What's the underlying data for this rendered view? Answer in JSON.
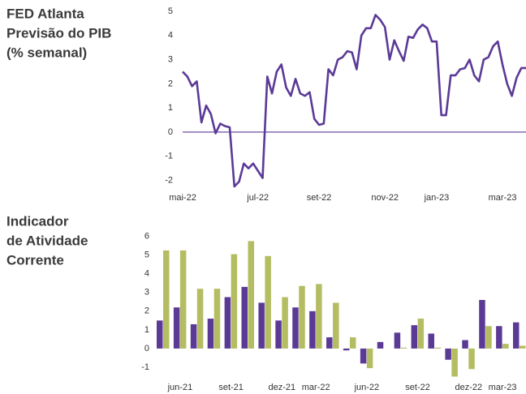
{
  "chart_data": [
    {
      "type": "line",
      "title": [
        "FED Atlanta",
        "Previsão do PIB",
        "(% semanal)"
      ],
      "categories": [
        "mai-22",
        null,
        null,
        null,
        null,
        null,
        null,
        null,
        null,
        null,
        null,
        null,
        null,
        null,
        null,
        null,
        "jul-22",
        null,
        null,
        null,
        null,
        null,
        null,
        null,
        null,
        null,
        null,
        null,
        null,
        "set-22",
        null,
        null,
        null,
        null,
        null,
        null,
        null,
        null,
        null,
        null,
        null,
        null,
        null,
        "nov-22",
        null,
        null,
        null,
        null,
        null,
        null,
        null,
        null,
        null,
        null,
        "jan-23",
        null,
        null,
        null,
        null,
        null,
        null,
        null,
        null,
        null,
        null,
        null,
        null,
        null,
        "mar-23",
        null,
        null,
        null,
        null,
        null
      ],
      "series": [
        {
          "color": "#5b3a96",
          "values": [
            2.5,
            2.3,
            1.9,
            2.1,
            0.4,
            1.1,
            0.75,
            -0.05,
            0.35,
            0.25,
            0.2,
            -2.25,
            -2.05,
            -1.3,
            -1.5,
            -1.3,
            -1.6,
            -1.9,
            2.3,
            1.6,
            2.5,
            2.8,
            1.85,
            1.5,
            2.2,
            1.6,
            1.5,
            1.65,
            0.55,
            0.3,
            0.35,
            2.6,
            2.35,
            3.0,
            3.1,
            3.35,
            3.3,
            2.6,
            4.0,
            4.3,
            4.3,
            4.85,
            4.65,
            4.35,
            3.0,
            3.8,
            3.35,
            2.95,
            3.95,
            3.9,
            4.25,
            4.45,
            4.3,
            3.75,
            3.75,
            0.7,
            0.7,
            2.35,
            2.35,
            2.6,
            2.65,
            3.0,
            2.35,
            2.1,
            3.0,
            3.1,
            3.55,
            3.75,
            2.8,
            2.0,
            1.5,
            2.25,
            2.65,
            2.65
          ]
        }
      ],
      "ylim": [
        -2.3,
        5.3
      ],
      "yticks": [
        -2,
        -1,
        0,
        1,
        2,
        3,
        4,
        5
      ]
    },
    {
      "type": "bar",
      "title": [
        "Indicador",
        "de Atividade",
        "Corrente"
      ],
      "categories": [
        null,
        "jun-21",
        null,
        null,
        "set-21",
        null,
        null,
        "dez-21",
        null,
        "mar-22",
        null,
        null,
        "jun-22",
        null,
        null,
        "set-22",
        null,
        null,
        "dez-22",
        null,
        "mar-23",
        null
      ],
      "series": [
        {
          "color": "#5b3a96",
          "values": [
            1.5,
            2.2,
            1.3,
            1.6,
            2.75,
            3.3,
            2.45,
            1.5,
            2.2,
            2.0,
            0.6,
            -0.1,
            -0.8,
            0.35,
            0.85,
            1.25,
            0.8,
            -0.6,
            0.45,
            2.6,
            1.2,
            1.4
          ]
        },
        {
          "color": "#b5bd62",
          "values": [
            5.25,
            5.25,
            3.2,
            3.2,
            5.05,
            5.75,
            4.95,
            2.75,
            3.35,
            3.45,
            2.45,
            0.6,
            -1.05,
            0,
            0.05,
            1.6,
            0.05,
            -1.5,
            -1.1,
            1.2,
            0.25,
            0.15
          ]
        }
      ],
      "ylim": [
        -1.6,
        6.2
      ],
      "yticks": [
        -1,
        0,
        1,
        2,
        3,
        4,
        5,
        6
      ]
    }
  ]
}
